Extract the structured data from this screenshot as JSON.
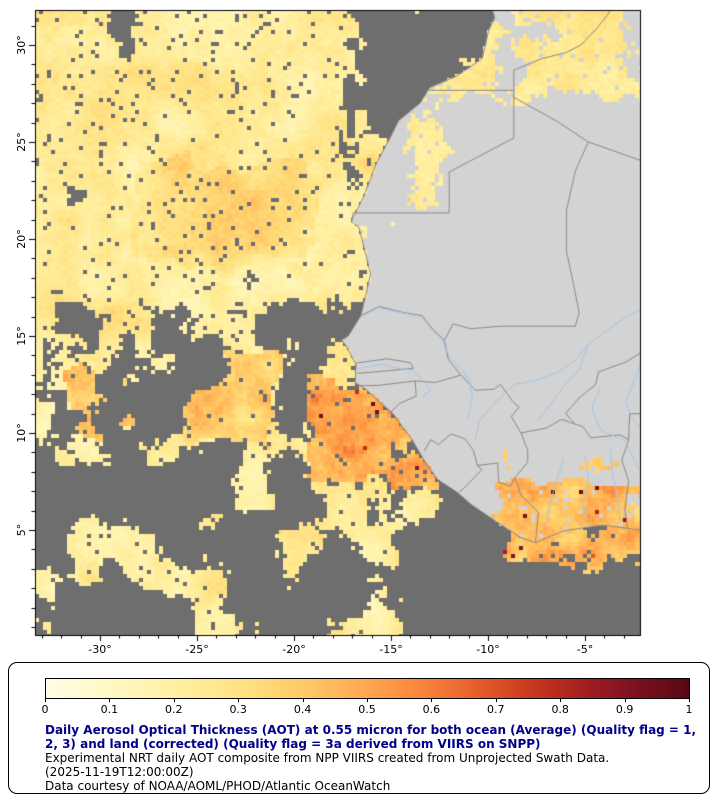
{
  "map": {
    "axis": {
      "lat_ticks": [
        {
          "value": 30,
          "label": "30°"
        },
        {
          "value": 25,
          "label": "25°"
        },
        {
          "value": 20,
          "label": "20°"
        },
        {
          "value": 15,
          "label": "15°"
        },
        {
          "value": 10,
          "label": "10°"
        },
        {
          "value": 5,
          "label": "5°"
        }
      ],
      "lon_ticks": [
        {
          "value": -30,
          "label": "-30°"
        },
        {
          "value": -25,
          "label": "-25°"
        },
        {
          "value": -20,
          "label": "-20°"
        },
        {
          "value": -15,
          "label": "-15°"
        },
        {
          "value": -10,
          "label": "-10°"
        },
        {
          "value": -5,
          "label": "-5°"
        }
      ]
    },
    "colors": {
      "no_data_ocean": "#6E6E6E",
      "land": "#D3D3D3",
      "country_border": "#8A8A8A",
      "river": "#A3C6E8",
      "frame": "#000000",
      "background": "#FFFFFF"
    }
  },
  "legend": {
    "colorbar": {
      "min": 0,
      "max": 1,
      "tick_labels": [
        "0",
        "0.1",
        "0.2",
        "0.3",
        "0.4",
        "0.5",
        "0.6",
        "0.7",
        "0.8",
        "0.9",
        "1"
      ],
      "stops": [
        {
          "v": 0.0,
          "c": "#FFFEE5"
        },
        {
          "v": 0.05,
          "c": "#FFFBD4"
        },
        {
          "v": 0.1,
          "c": "#FFF8C4"
        },
        {
          "v": 0.15,
          "c": "#FFF4B3"
        },
        {
          "v": 0.2,
          "c": "#FFF0A3"
        },
        {
          "v": 0.25,
          "c": "#FFEA93"
        },
        {
          "v": 0.3,
          "c": "#FFE284"
        },
        {
          "v": 0.35,
          "c": "#FFD775"
        },
        {
          "v": 0.4,
          "c": "#FFC967"
        },
        {
          "v": 0.45,
          "c": "#FFB95A"
        },
        {
          "v": 0.5,
          "c": "#FFA74E"
        },
        {
          "v": 0.55,
          "c": "#FC9343"
        },
        {
          "v": 0.6,
          "c": "#F57E39"
        },
        {
          "v": 0.65,
          "c": "#EA672F"
        },
        {
          "v": 0.7,
          "c": "#DC5026"
        },
        {
          "v": 0.75,
          "c": "#CA3A1F"
        },
        {
          "v": 0.8,
          "c": "#B42A1E"
        },
        {
          "v": 0.85,
          "c": "#9C1D20"
        },
        {
          "v": 0.9,
          "c": "#841422"
        },
        {
          "v": 0.95,
          "c": "#6D0D1B"
        },
        {
          "v": 1.0,
          "c": "#590814"
        }
      ]
    },
    "title_color": "#00008B",
    "title": "Daily Aerosol Optical Thickness (AOT) at 0.55 micron for both ocean (Average) (Quality flag = 1, 2, 3) and land (corrected) (Quality flag = 3a derived from VIIRS on SNPP)",
    "description": "Experimental NRT daily AOT composite from NPP VIIRS created from Unprojected Swath Data.",
    "timestamp": "(2025-11-19T12:00:00Z)",
    "credit": "Data courtesy of NOAA/AOML/PHOD/Atlantic OceanWatch"
  }
}
